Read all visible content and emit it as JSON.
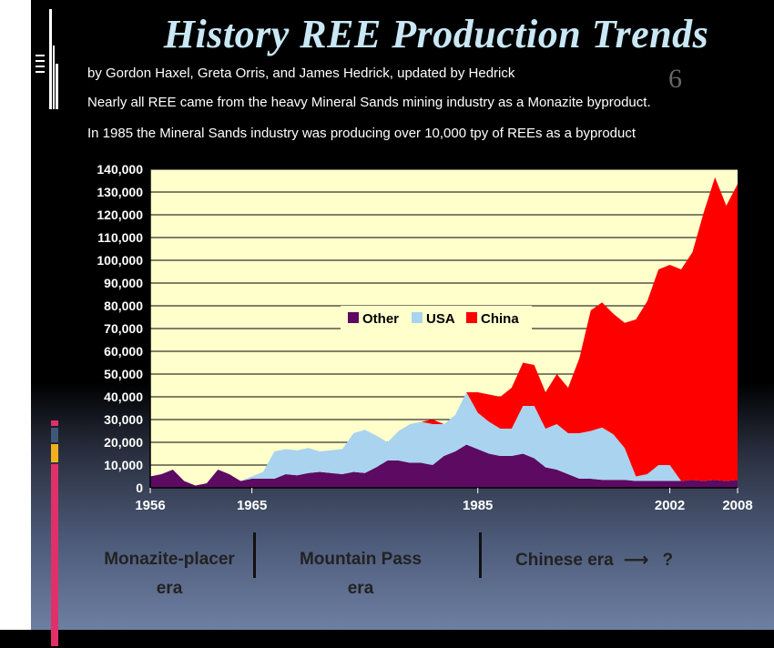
{
  "header": {
    "title": "History REE Production Trends",
    "byline": "by Gordon Haxel, Greta Orris, and James Hedrick, updated by Hedrick",
    "note1": "Nearly all REE came from the heavy Mineral Sands mining industry as a Monazite byproduct.",
    "note2": "In 1985 the Mineral Sands industry was producing over 10,000 tpy of REEs as a byproduct",
    "ghost_char": "6"
  },
  "colors": {
    "other": "#5c0a62",
    "usa": "#a9d3ef",
    "china": "#ff0000",
    "plot_bg": "#ffffcc"
  },
  "eras": {
    "era1_line1": "Monazite-placer",
    "era1_line2": "era",
    "era2_line1": "Mountain Pass",
    "era2_line2": "era",
    "era3": "Chinese era",
    "arrow": "⟶",
    "question": "?"
  },
  "chart_data": {
    "type": "area",
    "stacked": true,
    "x": [
      1956,
      1957,
      1958,
      1959,
      1960,
      1961,
      1962,
      1963,
      1964,
      1965,
      1966,
      1967,
      1968,
      1969,
      1970,
      1971,
      1972,
      1973,
      1974,
      1975,
      1976,
      1977,
      1978,
      1979,
      1980,
      1981,
      1982,
      1983,
      1984,
      1985,
      1986,
      1987,
      1988,
      1989,
      1990,
      1991,
      1992,
      1993,
      1994,
      1995,
      1996,
      1997,
      1998,
      1999,
      2000,
      2001,
      2002,
      2003,
      2004,
      2005,
      2006,
      2007,
      2008
    ],
    "series": [
      {
        "name": "Other",
        "values": [
          5000,
          6000,
          8000,
          3000,
          1000,
          2000,
          8000,
          6000,
          3000,
          4000,
          4000,
          4000,
          6000,
          5500,
          6500,
          7000,
          6500,
          6000,
          7000,
          6500,
          9000,
          12000,
          12000,
          11000,
          11000,
          10000,
          14000,
          16000,
          19000,
          17000,
          15000,
          14000,
          14000,
          15000,
          13000,
          9000,
          8000,
          6000,
          4000,
          4000,
          3500,
          3500,
          3500,
          3000,
          3000,
          3000,
          3000,
          3000,
          3500,
          3000,
          3500,
          3000,
          3500
        ]
      },
      {
        "name": "USA",
        "values": [
          0,
          0,
          0,
          0,
          0,
          0,
          0,
          0,
          0,
          1000,
          3000,
          12000,
          11000,
          11000,
          11000,
          9000,
          10000,
          11000,
          17000,
          19000,
          14000,
          8000,
          13000,
          17000,
          18000,
          18000,
          14000,
          16000,
          23000,
          16000,
          14000,
          12000,
          12000,
          21000,
          23000,
          17000,
          20000,
          18000,
          20000,
          21000,
          23000,
          20000,
          14000,
          2000,
          3000,
          7000,
          7000,
          0,
          0,
          0,
          0,
          0,
          0
        ]
      },
      {
        "name": "China",
        "values": [
          0,
          0,
          0,
          0,
          0,
          0,
          0,
          0,
          0,
          0,
          0,
          0,
          0,
          0,
          0,
          0,
          0,
          0,
          0,
          0,
          0,
          0,
          0,
          0,
          0,
          2000,
          0,
          0,
          0,
          9000,
          12000,
          14000,
          18000,
          19000,
          18000,
          16000,
          22000,
          20000,
          33000,
          53000,
          55000,
          53000,
          55000,
          69000,
          76000,
          86000,
          88000,
          93000,
          100000,
          118000,
          133000,
          121000,
          130000
        ]
      }
    ],
    "xticks": [
      1956,
      1965,
      1985,
      2002,
      2008
    ],
    "ylim": [
      0,
      140000
    ],
    "yticks": [
      0,
      10000,
      20000,
      30000,
      40000,
      50000,
      60000,
      70000,
      80000,
      90000,
      100000,
      110000,
      120000,
      130000,
      140000
    ],
    "ytick_labels": [
      "0",
      "10,000",
      "20,000",
      "30,000",
      "40,000",
      "50,000",
      "60,000",
      "70,000",
      "80,000",
      "90,000",
      "100,000",
      "110,000",
      "120,000",
      "130,000",
      "140,000"
    ],
    "grid": true,
    "legend": "center"
  }
}
